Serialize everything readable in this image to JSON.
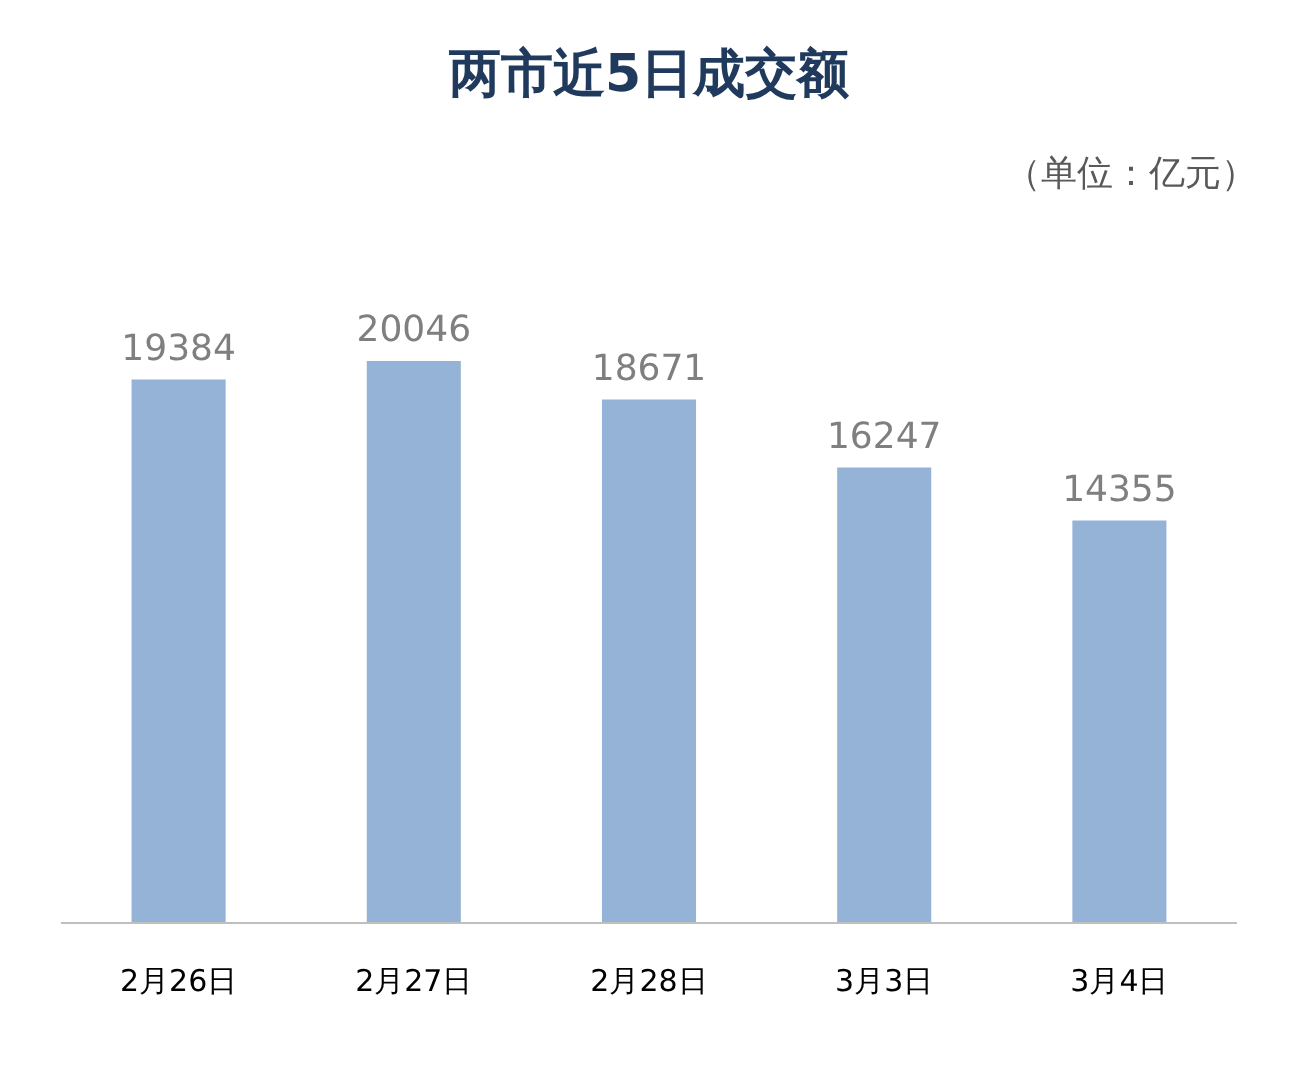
{
  "chart_data": {
    "type": "bar",
    "title": "两市近5日成交额",
    "annotations": [
      "（单位：亿元）"
    ],
    "categories": [
      "2月26日",
      "2月27日",
      "2月28日",
      "3月3日",
      "3月4日"
    ],
    "values": [
      19384,
      20046,
      18671,
      16247,
      14355
    ],
    "color": "#95b3d7",
    "data_labels": true
  }
}
